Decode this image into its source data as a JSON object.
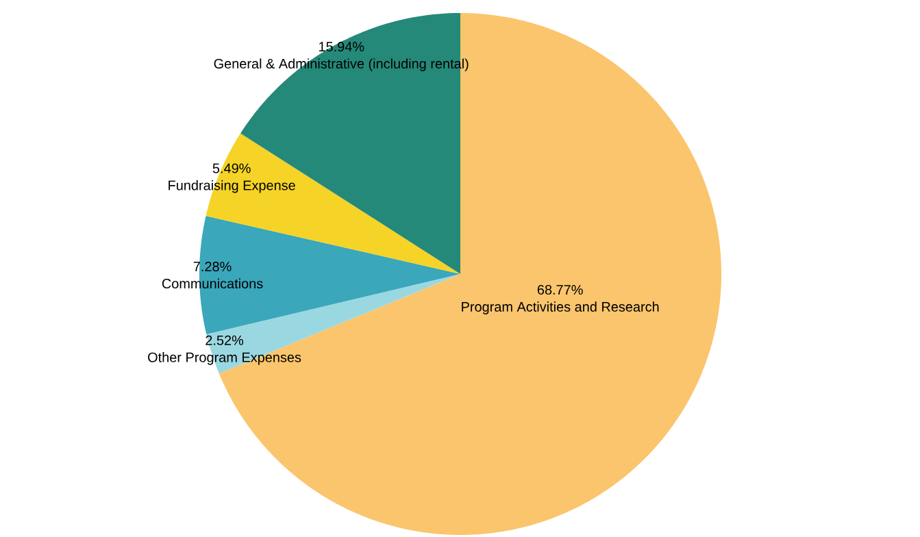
{
  "chart_data": {
    "type": "pie",
    "categories": [
      "Program Activities and Research",
      "Other Program Expenses",
      "Communications",
      "Fundraising Expense",
      "General & Administrative (including rental)"
    ],
    "values": [
      68.77,
      2.52,
      7.28,
      5.49,
      15.94
    ],
    "value_labels": [
      "68.77%",
      "2.52%",
      "7.28%",
      "5.49%",
      "15.94%"
    ],
    "colors": [
      "#fbc56d",
      "#9ad8e1",
      "#3aa7bb",
      "#f5d327",
      "#25897a"
    ]
  }
}
